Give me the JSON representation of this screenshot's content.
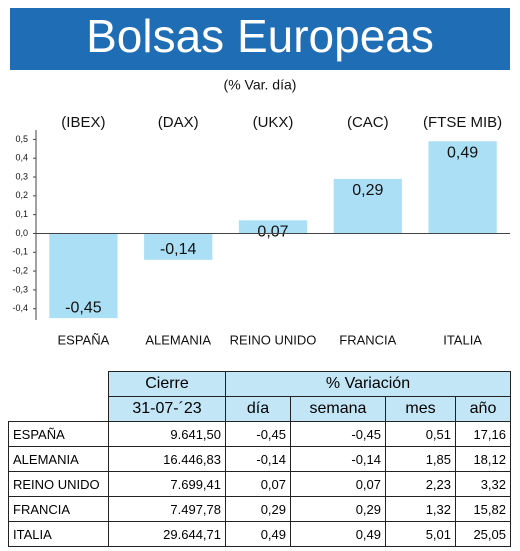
{
  "chart_data": {
    "type": "bar",
    "title": "Bolsas Europeas",
    "subtitle": "(% Var. día)",
    "categories": [
      "ESPAÑA",
      "ALEMANIA",
      "REINO UNIDO",
      "FRANCIA",
      "ITALIA"
    ],
    "index_labels": [
      "(IBEX)",
      "(DAX)",
      "(UKX)",
      "(CAC)",
      "(FTSE MIB)"
    ],
    "values": [
      -0.45,
      -0.14,
      0.07,
      0.29,
      0.49
    ],
    "value_labels": [
      "-0,45",
      "-0,14",
      "0,07",
      "0,29",
      "0,49"
    ],
    "color": "#aadff5",
    "ylim": [
      -0.46,
      0.55
    ],
    "yticks": [
      {
        "value": -0.4,
        "label": "-0,4"
      },
      {
        "value": -0.3,
        "label": "-0,3"
      },
      {
        "value": -0.2,
        "label": "-0,2"
      },
      {
        "value": -0.1,
        "label": "-0,1"
      },
      {
        "value": 0,
        "label": "0,0"
      },
      {
        "value": 0.1,
        "label": "0,1"
      },
      {
        "value": 0.2,
        "label": "0,2"
      },
      {
        "value": 0.3,
        "label": "0,3"
      },
      {
        "value": 0.4,
        "label": "0,4"
      },
      {
        "value": 0.5,
        "label": "0,5"
      }
    ],
    "grid": false
  },
  "table": {
    "header": [
      "Cierre",
      "% Variación"
    ],
    "subheader": [
      "31-07-´23",
      "día",
      "semana",
      "mes",
      "año"
    ],
    "rows": [
      [
        "ESPAÑA",
        "9.641,50",
        "-0,45",
        "-0,45",
        "0,51",
        "17,16"
      ],
      [
        "ALEMANIA",
        "16.446,83",
        "-0,14",
        "-0,14",
        "1,85",
        "18,12"
      ],
      [
        "REINO UNIDO",
        "7.699,41",
        "0,07",
        "0,07",
        "2,23",
        "3,32"
      ],
      [
        "FRANCIA",
        "7.497,78",
        "0,29",
        "0,29",
        "1,32",
        "15,82"
      ],
      [
        "ITALIA",
        "29.644,71",
        "0,49",
        "0,49",
        "5,01",
        "25,05"
      ]
    ]
  }
}
